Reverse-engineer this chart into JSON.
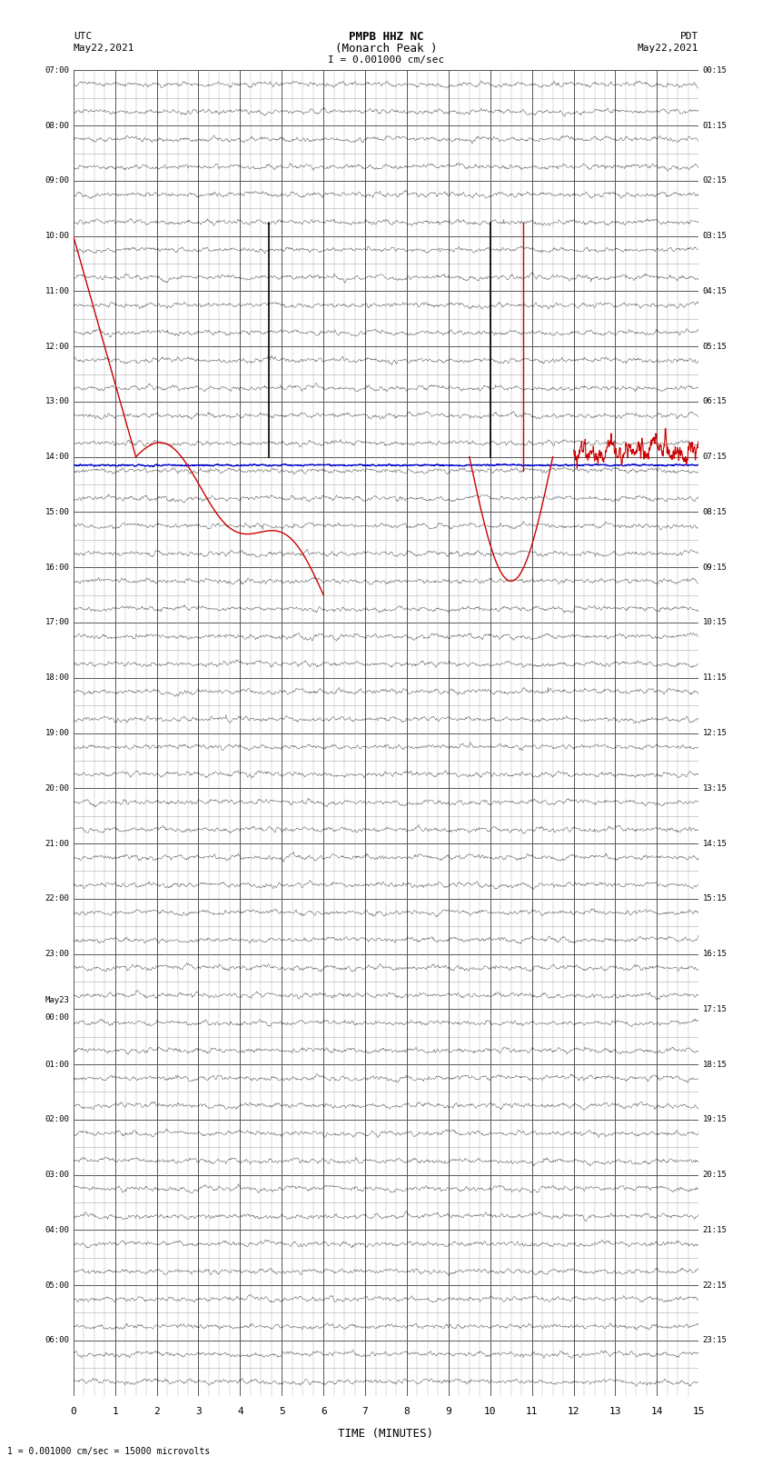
{
  "title_line1": "PMPB HHZ NC",
  "title_line2": "(Monarch Peak )",
  "title_line3": "I = 0.001000 cm/sec",
  "left_label_top": "UTC",
  "left_label_date": "May22,2021",
  "right_label_top": "PDT",
  "right_label_date": "May22,2021",
  "bottom_label": "TIME (MINUTES)",
  "bottom_note": "1 = 0.001000 cm/sec = 15000 microvolts",
  "utc_times": [
    "07:00",
    "08:00",
    "09:00",
    "10:00",
    "11:00",
    "12:00",
    "13:00",
    "14:00",
    "15:00",
    "16:00",
    "17:00",
    "18:00",
    "19:00",
    "20:00",
    "21:00",
    "22:00",
    "23:00",
    "May23\n00:00",
    "01:00",
    "02:00",
    "03:00",
    "04:00",
    "05:00",
    "06:00"
  ],
  "pdt_times": [
    "00:15",
    "01:15",
    "02:15",
    "03:15",
    "04:15",
    "05:15",
    "06:15",
    "07:15",
    "08:15",
    "09:15",
    "10:15",
    "11:15",
    "12:15",
    "13:15",
    "14:15",
    "15:15",
    "16:15",
    "17:15",
    "18:15",
    "19:15",
    "20:15",
    "21:15",
    "22:15",
    "23:15"
  ],
  "n_rows": 24,
  "n_cols": 15,
  "minor_rows_per_major": 2,
  "fig_width": 8.5,
  "fig_height": 16.13,
  "bg_color": "#ffffff",
  "major_grid_color": "#555555",
  "minor_grid_color": "#aaaaaa",
  "trace_color": "#000000",
  "red_color": "#cc0000",
  "blue_color": "#0000cc",
  "noise_scale": 0.025,
  "noise_seed": 42
}
